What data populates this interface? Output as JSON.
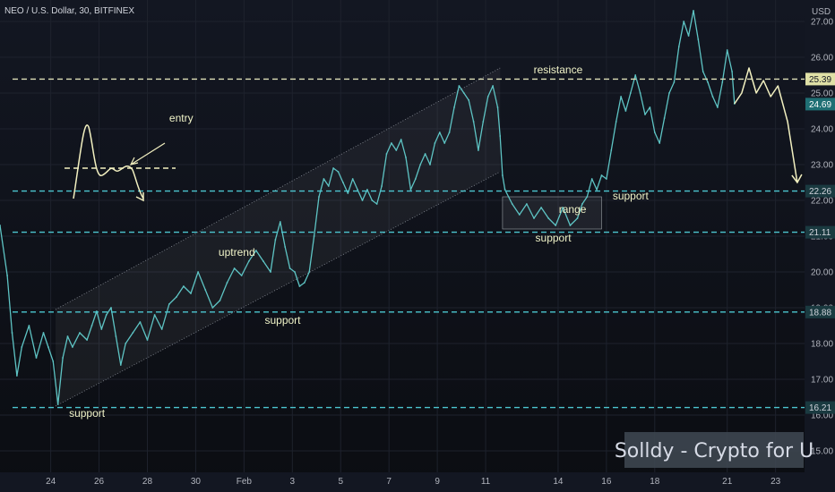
{
  "chart_data": {
    "type": "line",
    "title": "NEO / U.S. Dollar, 30, BITFINEX",
    "currency": "USD",
    "watermark": "Solldy - Crypto for U",
    "ylim": [
      14.4,
      27.6
    ],
    "y_ticks": [
      "15.00",
      "16.00",
      "17.00",
      "18.00",
      "19.00",
      "20.00",
      "21.00",
      "22.00",
      "23.00",
      "24.00",
      "25.00",
      "26.00",
      "27.00"
    ],
    "x_ticks": [
      {
        "label": "24",
        "x": 1
      },
      {
        "label": "26",
        "x": 3
      },
      {
        "label": "28",
        "x": 5
      },
      {
        "label": "30",
        "x": 7
      },
      {
        "label": "Feb",
        "x": 9
      },
      {
        "label": "3",
        "x": 11
      },
      {
        "label": "5",
        "x": 13
      },
      {
        "label": "7",
        "x": 15
      },
      {
        "label": "9",
        "x": 17
      },
      {
        "label": "11",
        "x": 19
      },
      {
        "label": "14",
        "x": 22
      },
      {
        "label": "16",
        "x": 24
      },
      {
        "label": "18",
        "x": 26
      },
      {
        "label": "21",
        "x": 29
      },
      {
        "label": "23",
        "x": 31
      }
    ],
    "xlim": [
      -1.1,
      32.2
    ],
    "series": [
      {
        "color": "#5ec4c4",
        "points": [
          [
            -1.1,
            21.3
          ],
          [
            -0.8,
            19.9
          ],
          [
            -0.6,
            18.3
          ],
          [
            -0.4,
            17.1
          ],
          [
            -0.2,
            17.9
          ],
          [
            0.1,
            18.5
          ],
          [
            0.4,
            17.6
          ],
          [
            0.7,
            18.3
          ],
          [
            0.9,
            17.9
          ],
          [
            1.1,
            17.5
          ],
          [
            1.3,
            16.3
          ],
          [
            1.5,
            17.6
          ],
          [
            1.7,
            18.2
          ],
          [
            1.9,
            17.9
          ],
          [
            2.2,
            18.3
          ],
          [
            2.5,
            18.1
          ],
          [
            2.7,
            18.5
          ],
          [
            2.9,
            18.9
          ],
          [
            3.1,
            18.4
          ],
          [
            3.3,
            18.8
          ],
          [
            3.5,
            19.0
          ],
          [
            3.7,
            18.2
          ],
          [
            3.9,
            17.4
          ],
          [
            4.1,
            18.0
          ],
          [
            4.4,
            18.3
          ],
          [
            4.7,
            18.6
          ],
          [
            5.0,
            18.1
          ],
          [
            5.3,
            18.8
          ],
          [
            5.6,
            18.4
          ],
          [
            5.9,
            19.1
          ],
          [
            6.2,
            19.3
          ],
          [
            6.5,
            19.6
          ],
          [
            6.8,
            19.4
          ],
          [
            7.1,
            20.0
          ],
          [
            7.4,
            19.5
          ],
          [
            7.7,
            19.0
          ],
          [
            8.0,
            19.2
          ],
          [
            8.3,
            19.7
          ],
          [
            8.6,
            20.1
          ],
          [
            8.9,
            19.9
          ],
          [
            9.2,
            20.3
          ],
          [
            9.5,
            20.6
          ],
          [
            9.8,
            20.3
          ],
          [
            10.1,
            20.0
          ],
          [
            10.3,
            20.9
          ],
          [
            10.5,
            21.4
          ],
          [
            10.7,
            20.7
          ],
          [
            10.9,
            20.1
          ],
          [
            11.1,
            20.0
          ],
          [
            11.3,
            19.6
          ],
          [
            11.5,
            19.7
          ],
          [
            11.7,
            20.0
          ],
          [
            11.9,
            21.0
          ],
          [
            12.1,
            22.1
          ],
          [
            12.3,
            22.6
          ],
          [
            12.5,
            22.4
          ],
          [
            12.7,
            22.9
          ],
          [
            12.9,
            22.8
          ],
          [
            13.1,
            22.5
          ],
          [
            13.3,
            22.2
          ],
          [
            13.5,
            22.6
          ],
          [
            13.7,
            22.3
          ],
          [
            13.9,
            22.0
          ],
          [
            14.1,
            22.3
          ],
          [
            14.3,
            22.0
          ],
          [
            14.5,
            21.9
          ],
          [
            14.7,
            22.4
          ],
          [
            14.9,
            23.3
          ],
          [
            15.1,
            23.6
          ],
          [
            15.3,
            23.4
          ],
          [
            15.5,
            23.7
          ],
          [
            15.7,
            23.2
          ],
          [
            15.9,
            22.3
          ],
          [
            16.1,
            22.6
          ],
          [
            16.3,
            23.0
          ],
          [
            16.5,
            23.3
          ],
          [
            16.7,
            23.0
          ],
          [
            16.9,
            23.6
          ],
          [
            17.1,
            23.9
          ],
          [
            17.3,
            23.6
          ],
          [
            17.5,
            23.9
          ],
          [
            17.7,
            24.6
          ],
          [
            17.9,
            25.2
          ],
          [
            18.1,
            25.0
          ],
          [
            18.3,
            24.8
          ],
          [
            18.5,
            24.2
          ],
          [
            18.7,
            23.4
          ],
          [
            18.9,
            24.2
          ],
          [
            19.1,
            24.9
          ],
          [
            19.3,
            25.2
          ],
          [
            19.5,
            24.6
          ],
          [
            19.6,
            23.8
          ],
          [
            19.7,
            22.7
          ],
          [
            19.8,
            22.3
          ],
          [
            20.1,
            21.9
          ],
          [
            20.4,
            21.6
          ],
          [
            20.7,
            21.9
          ],
          [
            21.0,
            21.5
          ],
          [
            21.3,
            21.8
          ],
          [
            21.6,
            21.5
          ],
          [
            21.9,
            21.3
          ],
          [
            22.2,
            21.8
          ],
          [
            22.5,
            21.3
          ],
          [
            22.8,
            21.5
          ],
          [
            23.0,
            21.9
          ],
          [
            23.2,
            22.1
          ],
          [
            23.4,
            22.6
          ],
          [
            23.6,
            22.3
          ],
          [
            23.8,
            22.7
          ],
          [
            24.0,
            22.6
          ],
          [
            24.2,
            23.4
          ],
          [
            24.4,
            24.2
          ],
          [
            24.6,
            24.9
          ],
          [
            24.8,
            24.5
          ],
          [
            25.0,
            25.0
          ],
          [
            25.2,
            25.5
          ],
          [
            25.4,
            25.0
          ],
          [
            25.6,
            24.4
          ],
          [
            25.8,
            24.6
          ],
          [
            26.0,
            23.9
          ],
          [
            26.2,
            23.6
          ],
          [
            26.4,
            24.3
          ],
          [
            26.6,
            25.0
          ],
          [
            26.8,
            25.3
          ],
          [
            27.0,
            26.3
          ],
          [
            27.2,
            27.0
          ],
          [
            27.4,
            26.6
          ],
          [
            27.6,
            27.3
          ],
          [
            27.8,
            26.5
          ],
          [
            28.0,
            25.6
          ],
          [
            28.2,
            25.3
          ],
          [
            28.4,
            24.9
          ],
          [
            28.6,
            24.6
          ],
          [
            28.8,
            25.3
          ],
          [
            29.0,
            26.2
          ],
          [
            29.2,
            25.6
          ],
          [
            29.3,
            24.7
          ]
        ]
      }
    ],
    "levels": [
      {
        "value": 25.39,
        "style": "dashed",
        "color": "#dfe0b8"
      },
      {
        "value": 22.26,
        "style": "dashed",
        "color": "#4cc6d0"
      },
      {
        "value": 21.11,
        "style": "dashed",
        "color": "#4cc6d0"
      },
      {
        "value": 18.88,
        "style": "dashed",
        "color": "#4cc6d0"
      },
      {
        "value": 16.21,
        "style": "dashed",
        "color": "#4cc6d0"
      }
    ],
    "price_labels": [
      {
        "text": "25.39",
        "value": 25.39,
        "bg": "#dfe0a6",
        "fg": "#131722"
      },
      {
        "text": "24.69",
        "value": 24.69,
        "bg": "#1f6f74",
        "fg": "#ffffff"
      },
      {
        "text": "22.26",
        "value": 22.26,
        "bg": "#1a3a40",
        "fg": "#d1d4dc"
      },
      {
        "text": "21.11",
        "value": 21.11,
        "bg": "#1a3a40",
        "fg": "#d1d4dc"
      },
      {
        "text": "18.88",
        "value": 18.88,
        "bg": "#1a3a40",
        "fg": "#d1d4dc"
      },
      {
        "text": "16.21",
        "value": 16.21,
        "bg": "#1a3a40",
        "fg": "#d1d4dc"
      }
    ],
    "annotations": [
      {
        "text": "resistance",
        "x": 22.0,
        "y": 25.55
      },
      {
        "text": "support",
        "x": 25.0,
        "y": 22.03
      },
      {
        "text": "range",
        "x": 22.6,
        "y": 21.65
      },
      {
        "text": "support",
        "x": 21.8,
        "y": 20.85
      },
      {
        "text": "uptrend",
        "x": 8.7,
        "y": 20.45
      },
      {
        "text": "support",
        "x": 10.6,
        "y": 18.55
      },
      {
        "text": "support",
        "x": 2.5,
        "y": 15.95
      },
      {
        "text": "entry",
        "x": 6.4,
        "y": 24.2
      }
    ],
    "channel": {
      "upper": [
        [
          1.2,
          18.95
        ],
        [
          19.6,
          25.7
        ]
      ],
      "lower": [
        [
          1.2,
          16.25
        ],
        [
          19.6,
          22.8
        ]
      ]
    },
    "range_box": {
      "x": [
        19.7,
        23.8
      ],
      "y": [
        21.2,
        22.1
      ]
    }
  }
}
